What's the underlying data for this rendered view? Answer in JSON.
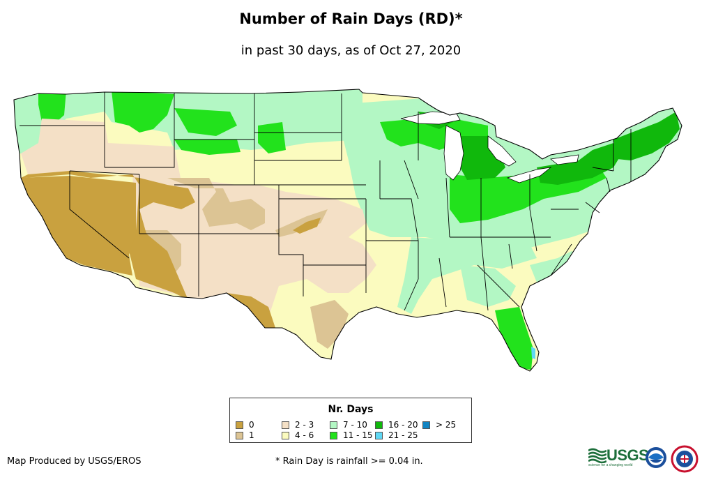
{
  "title": "Number of Rain Days (RD)*",
  "subtitle": "in past 30 days, as of Oct 27, 2020",
  "legend": {
    "title": "Nr. Days",
    "items": [
      {
        "label": "0",
        "color": "#c9a13f"
      },
      {
        "label": "1",
        "color": "#dcc494"
      },
      {
        "label": "2 - 3",
        "color": "#f4e0c6"
      },
      {
        "label": "4 - 6",
        "color": "#fbfbbf"
      },
      {
        "label": "7 - 10",
        "color": "#b3f7c4"
      },
      {
        "label": "11 - 15",
        "color": "#22e21c"
      },
      {
        "label": "16 - 20",
        "color": "#10b80c"
      },
      {
        "label": "21 - 25",
        "color": "#5fd8f4"
      },
      {
        "label": "> 25",
        "color": "#1184c2"
      }
    ]
  },
  "credit": "Map Produced by USGS/EROS",
  "footnote": "* Rain Day is rainfall >= 0.04 in.",
  "logos": {
    "usgs": "USGS",
    "usgs_tagline": "science for a changing world",
    "noaa": "noaa-logo",
    "nws": "nws-logo"
  }
}
